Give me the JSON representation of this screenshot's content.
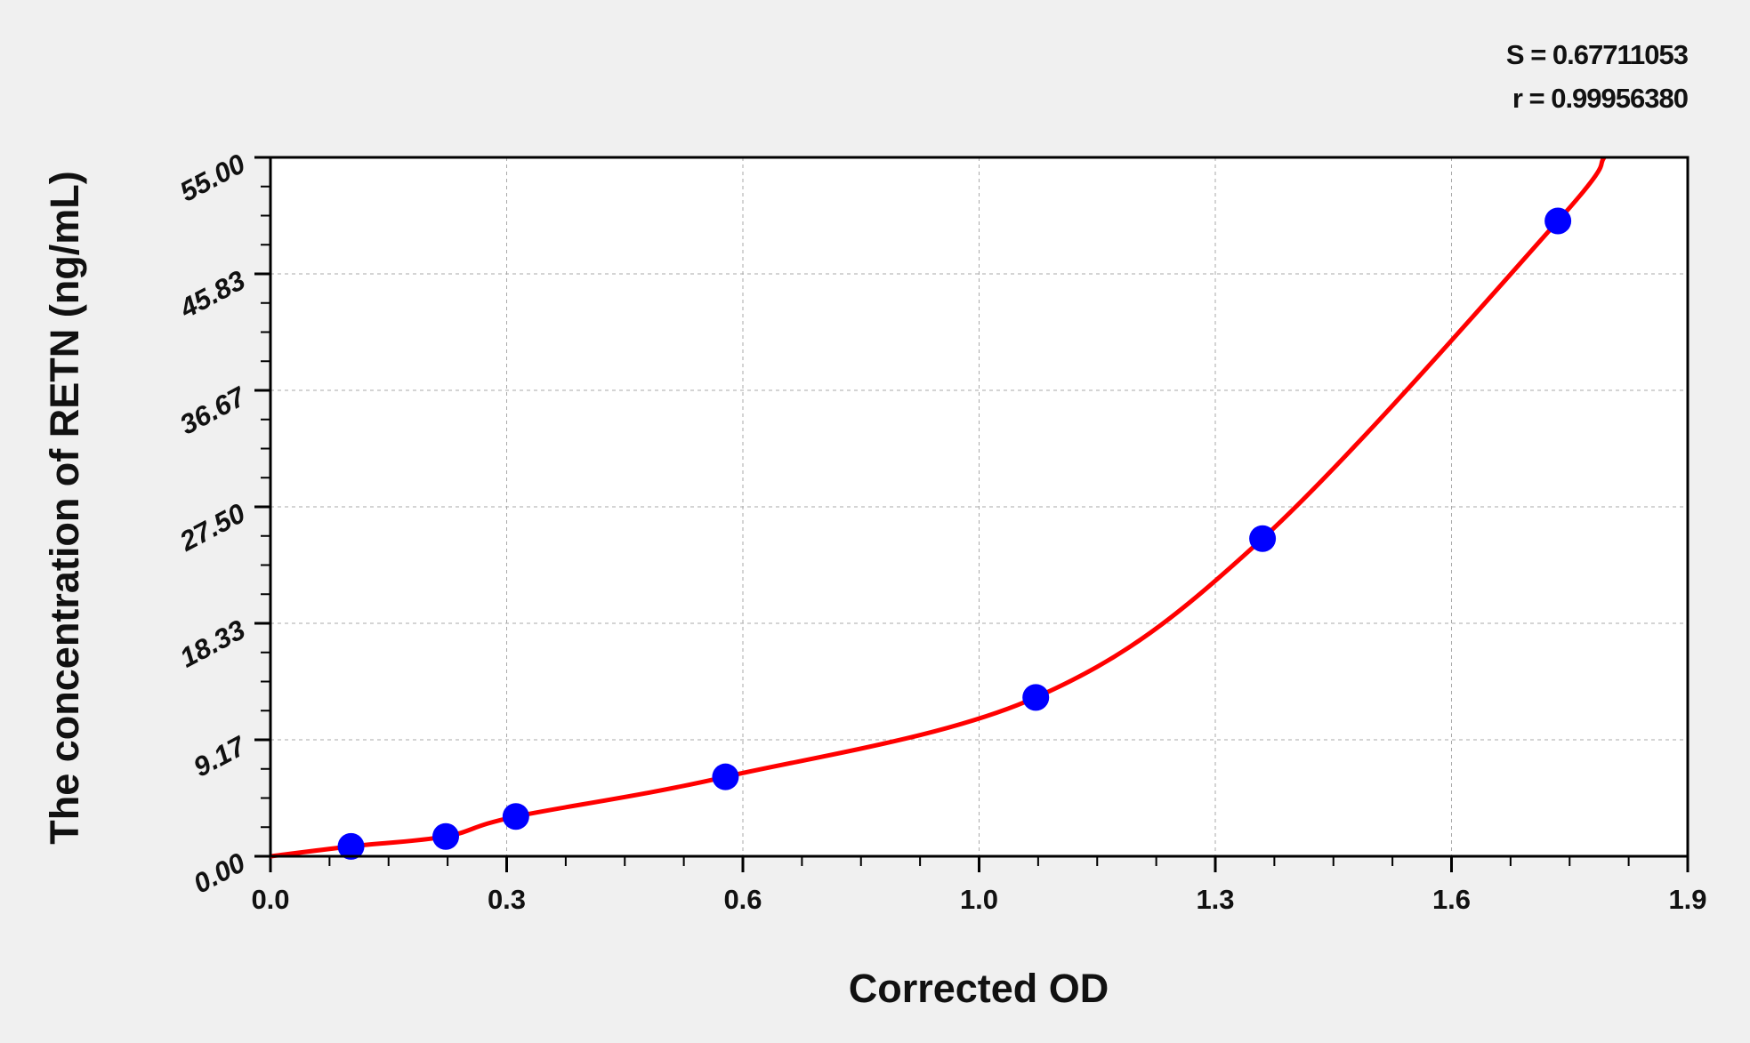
{
  "stats": {
    "s_label": "S = 0.67711053",
    "r_label": "r = 0.99956380"
  },
  "chart_data": {
    "type": "scatter",
    "xlabel": "Corrected OD",
    "ylabel": "The concentration of RETN (ng/mL)",
    "xlim": [
      0,
      1.9
    ],
    "ylim": [
      0,
      55
    ],
    "x_tick_labels": [
      "0.0",
      "0.3",
      "0.6",
      "1.0",
      "1.3",
      "1.6",
      "1.9"
    ],
    "y_tick_labels": [
      "0.00",
      "9.17",
      "18.33",
      "27.50",
      "36.67",
      "45.83",
      "55.00"
    ],
    "grid": true,
    "points": [
      {
        "x": 0.108,
        "y": 0.78
      },
      {
        "x": 0.235,
        "y": 1.56
      },
      {
        "x": 0.329,
        "y": 3.13
      },
      {
        "x": 0.61,
        "y": 6.25
      },
      {
        "x": 1.026,
        "y": 12.5
      },
      {
        "x": 1.33,
        "y": 25.0
      },
      {
        "x": 1.726,
        "y": 50.0
      }
    ],
    "fit_curve_end": {
      "x": 1.788,
      "y": 55
    },
    "colors": {
      "points": "#0000ff",
      "curve": "#ff0000",
      "grid": "#aaaaaa"
    }
  }
}
